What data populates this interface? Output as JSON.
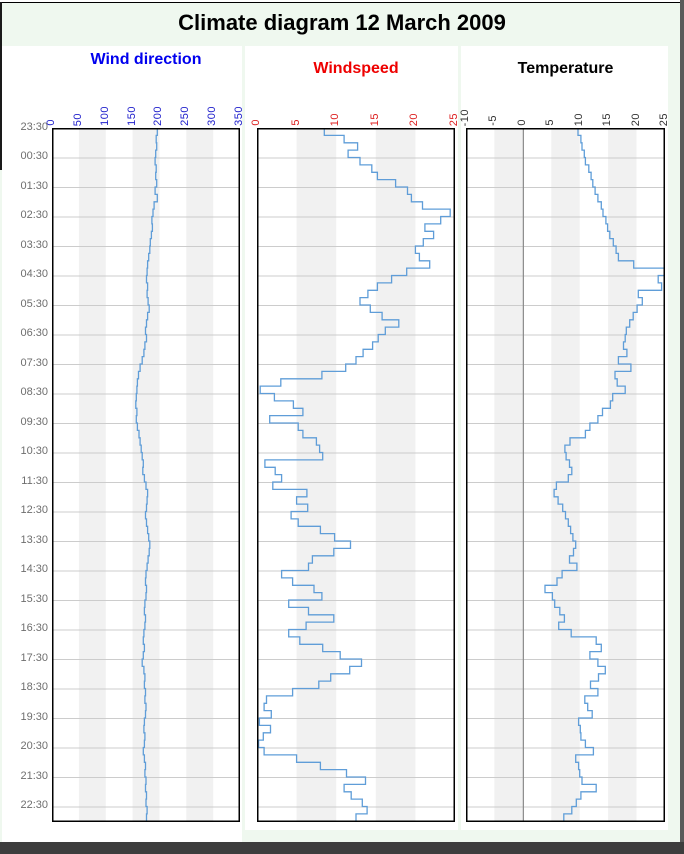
{
  "frame": {
    "title": "Climate diagram 12 March 2009",
    "background_color": "#eff8ef",
    "statusbar_color": "#3d3d3d"
  },
  "time_axis": {
    "labels": [
      "23:30",
      "00:30",
      "01:30",
      "02:30",
      "03:30",
      "04:30",
      "05:30",
      "06:30",
      "07:30",
      "08:30",
      "09:30",
      "10:30",
      "11:30",
      "12:30",
      "13:30",
      "14:30",
      "15:30",
      "16:30",
      "17:30",
      "18:30",
      "19:30",
      "20:30",
      "21:30",
      "22:30"
    ],
    "color": "#6e6e6e"
  },
  "style": {
    "line_color": "#5f9dd8",
    "band_color": "#f1f1f1",
    "grid_color": "#cccccc",
    "plot_border_color": "#000000",
    "zero_line_color": "#8a8a8a"
  },
  "chart_data": [
    {
      "type": "step-line",
      "title": "Wind direction",
      "title_color": "#0000ee",
      "tick_color": "#2222cc",
      "xlim": [
        0,
        350
      ],
      "xticks": [
        0,
        50,
        100,
        150,
        200,
        250,
        300,
        350
      ],
      "time_start": "23:30",
      "time_end": "23:00",
      "sample_interval_min": 15,
      "values": [
        196,
        194,
        195,
        193,
        192,
        194,
        193,
        195,
        192,
        196,
        190,
        188,
        186,
        187,
        185,
        183,
        182,
        180,
        178,
        177,
        176,
        178,
        177,
        179,
        181,
        178,
        176,
        174,
        176,
        173,
        171,
        168,
        164,
        161,
        159,
        158,
        157,
        156,
        158,
        157,
        159,
        162,
        164,
        166,
        168,
        170,
        169,
        172,
        175,
        178,
        177,
        176,
        174,
        176,
        178,
        180,
        182,
        181,
        179,
        177,
        175,
        174,
        176,
        175,
        173,
        172,
        174,
        173,
        171,
        170,
        172,
        170,
        168,
        171,
        173,
        172,
        174,
        173,
        175,
        174,
        172,
        171,
        173,
        172,
        170,
        172,
        174,
        173,
        175,
        174,
        176,
        175,
        177,
        176,
        178
      ]
    },
    {
      "type": "step-line",
      "title": "Windspeed",
      "title_color": "#ee0000",
      "tick_color": "#dd2222",
      "xlim": [
        0,
        25
      ],
      "xticks": [
        0,
        5,
        10,
        15,
        20,
        25
      ],
      "time_start": "23:30",
      "time_end": "23:00",
      "sample_interval_min": 15,
      "values": [
        8.5,
        11.0,
        12.7,
        11.5,
        13.0,
        14.5,
        15.2,
        17.5,
        19.0,
        19.5,
        20.9,
        24.4,
        23.2,
        21.2,
        22.3,
        21.0,
        20.0,
        20.5,
        21.8,
        18.9,
        17.0,
        15.2,
        14.0,
        13.0,
        14.3,
        15.8,
        17.9,
        16.2,
        15.3,
        14.6,
        13.4,
        12.5,
        11.2,
        8.2,
        3.0,
        0.4,
        2.2,
        4.6,
        5.8,
        1.6,
        5.2,
        5.8,
        7.5,
        7.9,
        8.3,
        1.0,
        2.3,
        3.1,
        2.0,
        6.3,
        5.0,
        6.4,
        4.3,
        5.2,
        8.0,
        9.8,
        11.8,
        9.7,
        7.0,
        6.5,
        3.1,
        4.5,
        7.2,
        8.2,
        4.0,
        6.5,
        9.7,
        6.2,
        4.0,
        5.4,
        8.3,
        10.5,
        13.2,
        11.7,
        9.3,
        7.8,
        4.5,
        1.2,
        0.9,
        1.8,
        0.3,
        1.7,
        0.8,
        0.2,
        0.9,
        5.0,
        8.0,
        11.3,
        13.7,
        11.0,
        11.9,
        13.3,
        13.9,
        12.5,
        14.6
      ]
    },
    {
      "type": "step-line",
      "title": "Temperature",
      "title_color": "#000000",
      "tick_color": "#333333",
      "xlim": [
        -10,
        25
      ],
      "xticks": [
        -10,
        -5,
        0,
        5,
        10,
        15,
        20,
        25
      ],
      "zero_line_value": 0,
      "time_start": "23:30",
      "time_end": "23:00",
      "sample_interval_min": 15,
      "values": [
        9.7,
        10.2,
        10.4,
        10.8,
        11.0,
        11.6,
        12.0,
        12.3,
        12.7,
        13.2,
        13.8,
        14.1,
        14.6,
        14.9,
        15.3,
        15.9,
        16.4,
        16.8,
        19.5,
        24.9,
        23.8,
        24.4,
        20.3,
        21.0,
        20.1,
        19.4,
        18.8,
        18.2,
        18.0,
        17.7,
        18.3,
        16.8,
        19.0,
        16.2,
        16.6,
        18.0,
        15.8,
        15.4,
        14.0,
        13.2,
        11.8,
        11.0,
        8.3,
        7.4,
        7.6,
        8.2,
        8.6,
        8.0,
        5.9,
        5.5,
        6.2,
        7.0,
        7.5,
        8.0,
        8.4,
        8.8,
        9.3,
        8.9,
        8.2,
        9.5,
        6.9,
        6.0,
        3.9,
        5.2,
        5.6,
        6.5,
        7.3,
        6.3,
        8.5,
        12.9,
        13.8,
        11.8,
        13.2,
        14.5,
        13.3,
        11.9,
        13.2,
        10.9,
        11.4,
        12.2,
        9.8,
        10.1,
        10.2,
        11.0,
        12.4,
        9.3,
        9.8,
        10.0,
        10.4,
        12.9,
        10.2,
        9.4,
        8.6,
        7.2,
        6.6
      ]
    }
  ]
}
